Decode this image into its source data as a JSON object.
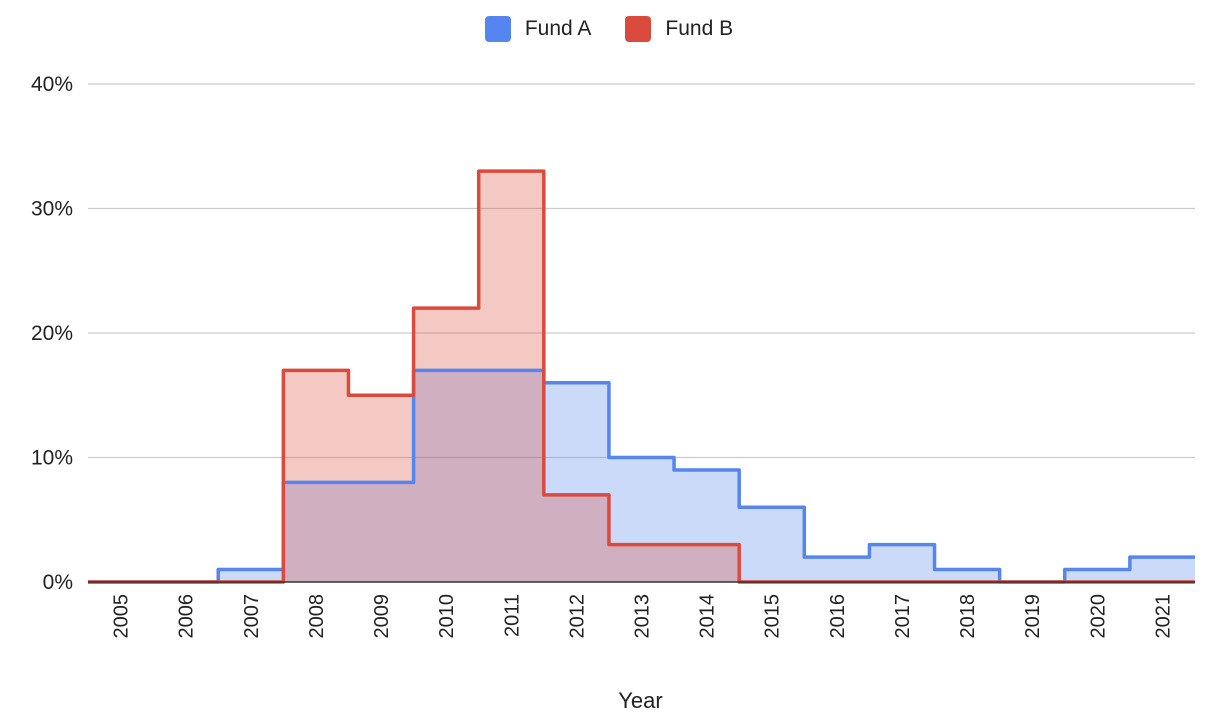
{
  "chart_data": {
    "type": "area",
    "step": true,
    "categories": [
      "2005",
      "2006",
      "2007",
      "2008",
      "2009",
      "2010",
      "2011",
      "2012",
      "2013",
      "2014",
      "2015",
      "2016",
      "2017",
      "2018",
      "2019",
      "2020",
      "2021"
    ],
    "series": [
      {
        "name": "Fund A",
        "color": "#5585EE",
        "fill": "#C9D9F8",
        "values": [
          0,
          0,
          1,
          8,
          8,
          17,
          17,
          16,
          10,
          9,
          6,
          2,
          3,
          1,
          0,
          1,
          2
        ]
      },
      {
        "name": "Fund B",
        "color": "#DB4B3D",
        "fill": "#F0C5C1",
        "values": [
          0,
          0,
          0,
          17,
          15,
          22,
          33,
          7,
          3,
          3,
          0,
          0,
          0,
          0,
          0,
          0,
          0
        ]
      }
    ],
    "xlabel": "Year",
    "ylabel": "",
    "ylim": [
      0,
      40
    ],
    "yticks": [
      "0%",
      "10%",
      "20%",
      "30%",
      "40%"
    ],
    "grid": true,
    "legend": "top-center"
  }
}
